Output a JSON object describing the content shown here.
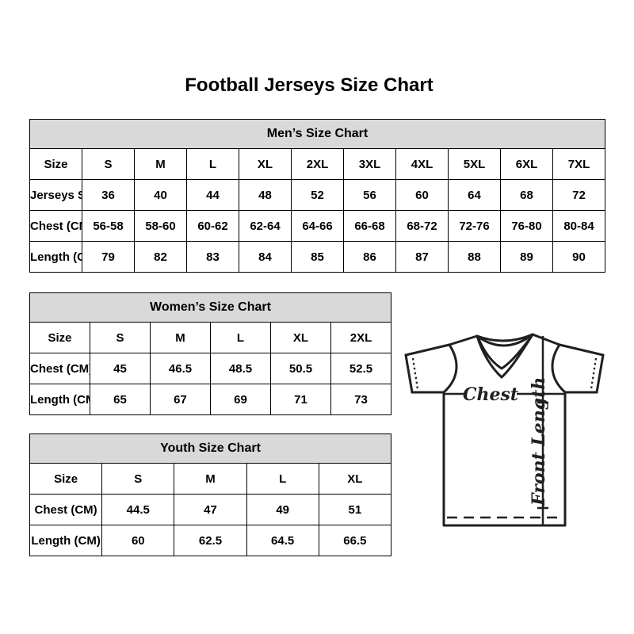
{
  "page": {
    "title": "Football Jerseys Size Chart"
  },
  "tables": {
    "mens": {
      "title": "Men’s Size Chart",
      "rows": [
        [
          "Size",
          "S",
          "M",
          "L",
          "XL",
          "2XL",
          "3XL",
          "4XL",
          "5XL",
          "6XL",
          "7XL"
        ],
        [
          "Jerseys Size",
          "36",
          "40",
          "44",
          "48",
          "52",
          "56",
          "60",
          "64",
          "68",
          "72"
        ],
        [
          "Chest (CM)",
          "56-58",
          "58-60",
          "60-62",
          "62-64",
          "64-66",
          "66-68",
          "68-72",
          "72-76",
          "76-80",
          "80-84"
        ],
        [
          "Length (CM)",
          "79",
          "82",
          "83",
          "84",
          "85",
          "86",
          "87",
          "88",
          "89",
          "90"
        ]
      ]
    },
    "womens": {
      "title": "Women’s Size Chart",
      "rows": [
        [
          "Size",
          "S",
          "M",
          "L",
          "XL",
          "2XL"
        ],
        [
          "Chest (CM)",
          "45",
          "46.5",
          "48.5",
          "50.5",
          "52.5"
        ],
        [
          "Length (CM)",
          "65",
          "67",
          "69",
          "71",
          "73"
        ]
      ]
    },
    "youth": {
      "title": "Youth Size Chart",
      "rows": [
        [
          "Size",
          "S",
          "M",
          "L",
          "XL"
        ],
        [
          "Chest (CM)",
          "44.5",
          "47",
          "49",
          "51"
        ],
        [
          "Length (CM)",
          "60",
          "62.5",
          "64.5",
          "66.5"
        ]
      ]
    }
  },
  "diagram": {
    "chest_label": "Chest",
    "front_length_label": "Front Length"
  },
  "colors": {
    "table_header_bg": "#d9d9d9",
    "table_border": "#000000",
    "text": "#000000",
    "diagram_line": "#231f20",
    "background": "#ffffff"
  }
}
